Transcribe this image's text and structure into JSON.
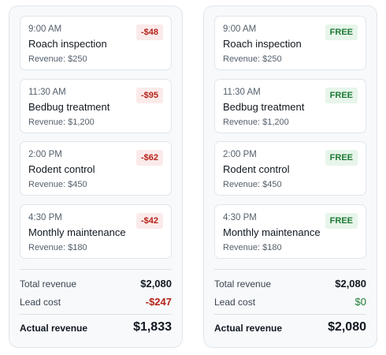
{
  "left_panel": {
    "appointments": [
      {
        "time": "9:00 AM",
        "service": "Roach inspection",
        "revenue": "Revenue: $250",
        "badge": "-$48"
      },
      {
        "time": "11:30 AM",
        "service": "Bedbug treatment",
        "revenue": "Revenue: $1,200",
        "badge": "-$95"
      },
      {
        "time": "2:00 PM",
        "service": "Rodent control",
        "revenue": "Revenue: $450",
        "badge": "-$62"
      },
      {
        "time": "4:30 PM",
        "service": "Monthly maintenance",
        "revenue": "Revenue: $180",
        "badge": "-$42"
      }
    ],
    "summary": {
      "total_revenue_label": "Total revenue",
      "total_revenue_value": "$2,080",
      "lead_cost_label": "Lead cost",
      "lead_cost_value": "-$247",
      "actual_revenue_label": "Actual revenue",
      "actual_revenue_value": "$1,833"
    }
  },
  "right_panel": {
    "appointments": [
      {
        "time": "9:00 AM",
        "service": "Roach inspection",
        "revenue": "Revenue: $250",
        "badge": "FREE"
      },
      {
        "time": "11:30 AM",
        "service": "Bedbug treatment",
        "revenue": "Revenue: $1,200",
        "badge": "FREE"
      },
      {
        "time": "2:00 PM",
        "service": "Rodent control",
        "revenue": "Revenue: $450",
        "badge": "FREE"
      },
      {
        "time": "4:30 PM",
        "service": "Monthly maintenance",
        "revenue": "Revenue: $180",
        "badge": "FREE"
      }
    ],
    "summary": {
      "total_revenue_label": "Total revenue",
      "total_revenue_value": "$2,080",
      "lead_cost_label": "Lead cost",
      "lead_cost_value": "$0",
      "actual_revenue_label": "Actual revenue",
      "actual_revenue_value": "$2,080"
    }
  },
  "colors": {
    "cost_badge_bg": "#fbeaea",
    "cost_text": "#b42318",
    "free_badge_bg": "#e7f5ea",
    "free_text": "#1e7a34",
    "panel_bg": "#f7f9fb"
  }
}
